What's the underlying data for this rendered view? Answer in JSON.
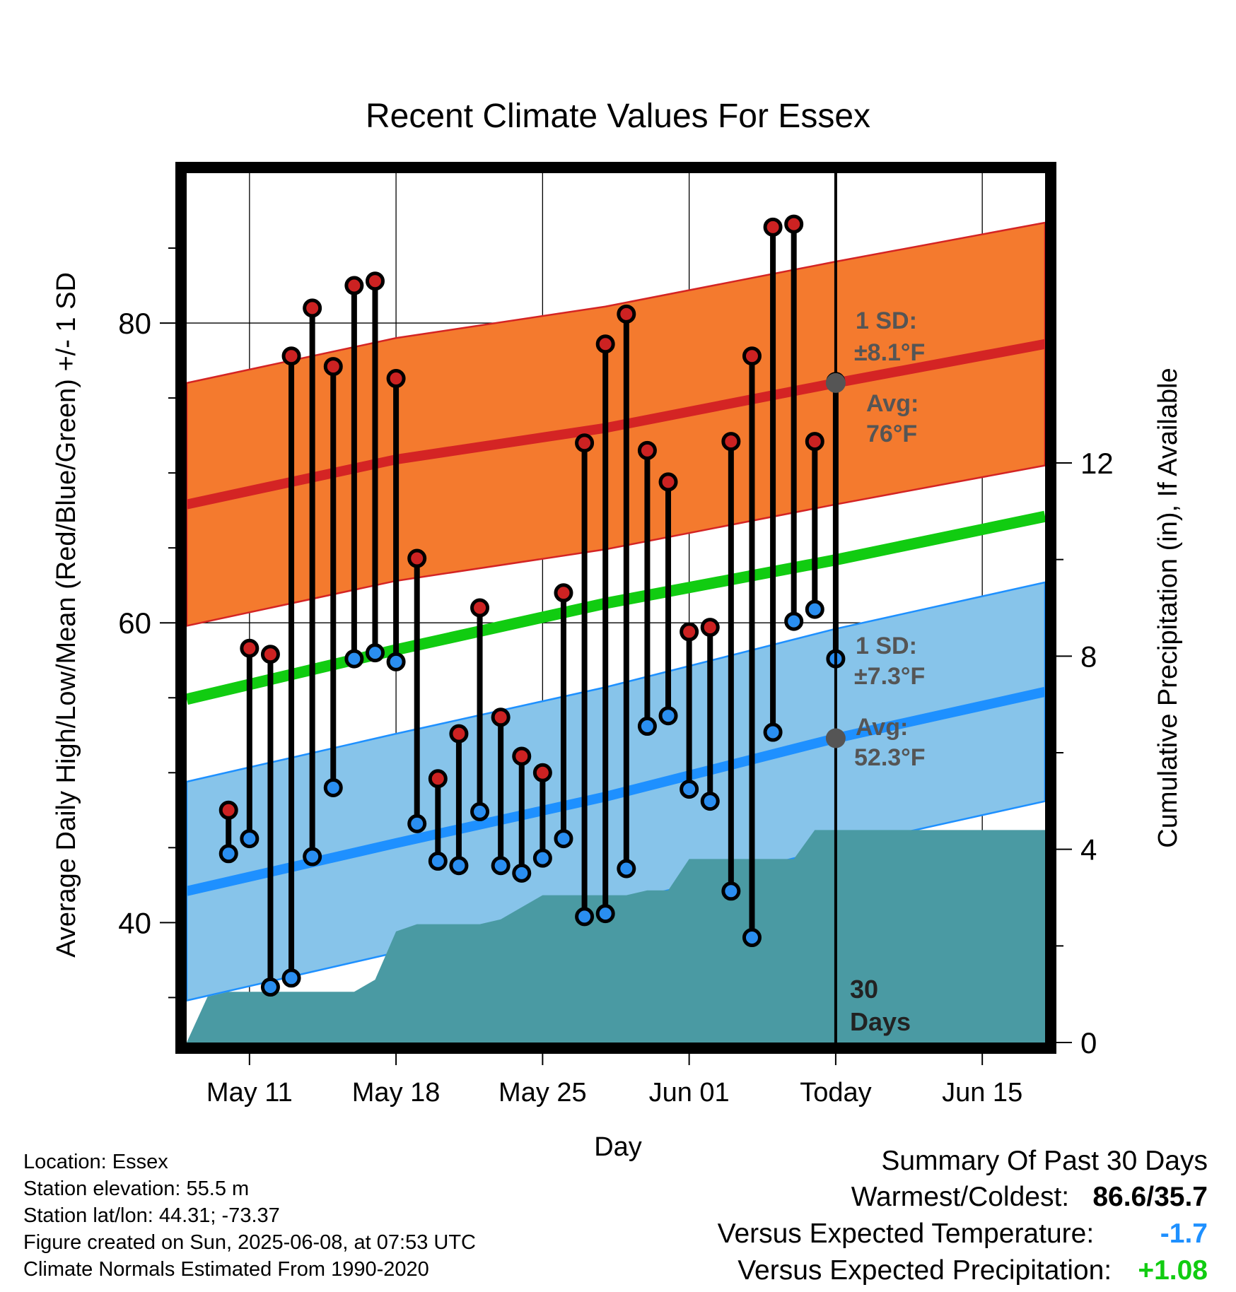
{
  "chart_data": {
    "type": "climate-range",
    "title": "Recent Climate Values For Essex",
    "xlabel": "Day",
    "ylabel_left": "Average Daily High/Low/Mean (Red/Blue/Green) +/- 1 SD",
    "ylabel_right": "Cumulative Precipitation (in), If Available",
    "ylim": [
      32,
      90
    ],
    "yticks_left": [
      40,
      60,
      80
    ],
    "y2lim": [
      0,
      18
    ],
    "yticks_right": [
      0,
      4,
      8,
      12
    ],
    "x_start": "2025-05-08",
    "x_end": "2025-06-18",
    "today": "2025-06-08",
    "xticks": [
      {
        "date": "2025-05-11",
        "label": "May 11"
      },
      {
        "date": "2025-05-18",
        "label": "May 18"
      },
      {
        "date": "2025-05-25",
        "label": "May 25"
      },
      {
        "date": "2025-06-01",
        "label": "Jun 01"
      },
      {
        "date": "2025-06-08",
        "label": "Today"
      },
      {
        "date": "2025-06-15",
        "label": "Jun 15"
      }
    ],
    "observed": [
      {
        "date": "2025-05-10",
        "high": 47.5,
        "low": 44.6
      },
      {
        "date": "2025-05-11",
        "high": 58.3,
        "low": 45.6
      },
      {
        "date": "2025-05-12",
        "high": 57.9,
        "low": 35.7
      },
      {
        "date": "2025-05-13",
        "high": 77.8,
        "low": 36.3
      },
      {
        "date": "2025-05-14",
        "high": 81.0,
        "low": 44.4
      },
      {
        "date": "2025-05-15",
        "high": 77.1,
        "low": 49.0
      },
      {
        "date": "2025-05-16",
        "high": 82.5,
        "low": 57.6
      },
      {
        "date": "2025-05-17",
        "high": 82.8,
        "low": 58.0
      },
      {
        "date": "2025-05-18",
        "high": 76.3,
        "low": 57.4
      },
      {
        "date": "2025-05-19",
        "high": 64.3,
        "low": 46.6
      },
      {
        "date": "2025-05-20",
        "high": 49.6,
        "low": 44.1
      },
      {
        "date": "2025-05-21",
        "high": 52.6,
        "low": 43.8
      },
      {
        "date": "2025-05-22",
        "high": 61.0,
        "low": 47.4
      },
      {
        "date": "2025-05-23",
        "high": 53.7,
        "low": 43.8
      },
      {
        "date": "2025-05-24",
        "high": 51.1,
        "low": 43.3
      },
      {
        "date": "2025-05-25",
        "high": 50.0,
        "low": 44.3
      },
      {
        "date": "2025-05-26",
        "high": 62.0,
        "low": 45.6
      },
      {
        "date": "2025-05-27",
        "high": 72.0,
        "low": 40.4
      },
      {
        "date": "2025-05-28",
        "high": 78.6,
        "low": 40.6
      },
      {
        "date": "2025-05-29",
        "high": 80.6,
        "low": 43.6
      },
      {
        "date": "2025-05-30",
        "high": 71.5,
        "low": 53.1
      },
      {
        "date": "2025-05-31",
        "high": 69.4,
        "low": 53.8
      },
      {
        "date": "2025-06-01",
        "high": 59.4,
        "low": 48.9
      },
      {
        "date": "2025-06-02",
        "high": 59.7,
        "low": 48.1
      },
      {
        "date": "2025-06-03",
        "high": 72.1,
        "low": 42.1
      },
      {
        "date": "2025-06-04",
        "high": 77.8,
        "low": 39.0
      },
      {
        "date": "2025-06-05",
        "high": 86.4,
        "low": 52.7
      },
      {
        "date": "2025-06-06",
        "high": 86.6,
        "low": 60.1
      },
      {
        "date": "2025-06-07",
        "high": 72.1,
        "low": 60.9
      },
      {
        "date": "2025-06-08",
        "high": 76.1,
        "low": 57.6
      }
    ],
    "normal_high": {
      "dates": [
        "2025-05-08",
        "2025-05-18",
        "2025-05-28",
        "2025-06-08",
        "2025-06-18"
      ],
      "avg": [
        67.9,
        70.9,
        73.0,
        76.0,
        78.6
      ],
      "sd": 8.1
    },
    "normal_low": {
      "dates": [
        "2025-05-08",
        "2025-05-18",
        "2025-05-28",
        "2025-06-08",
        "2025-06-18"
      ],
      "avg": [
        42.1,
        45.3,
        48.4,
        52.3,
        55.4
      ],
      "sd": 7.3
    },
    "normal_mean": {
      "dates": [
        "2025-05-08",
        "2025-05-18",
        "2025-05-28",
        "2025-06-08",
        "2025-06-18"
      ],
      "values": [
        54.9,
        58.2,
        61.3,
        64.2,
        67.1
      ]
    },
    "precip_cumulative": {
      "dates": [
        "2025-05-08",
        "2025-05-09",
        "2025-05-10",
        "2025-05-11",
        "2025-05-12",
        "2025-05-13",
        "2025-05-14",
        "2025-05-15",
        "2025-05-16",
        "2025-05-17",
        "2025-05-18",
        "2025-05-19",
        "2025-05-20",
        "2025-05-21",
        "2025-05-22",
        "2025-05-23",
        "2025-05-24",
        "2025-05-25",
        "2025-05-26",
        "2025-05-27",
        "2025-05-28",
        "2025-05-29",
        "2025-05-30",
        "2025-05-31",
        "2025-06-01",
        "2025-06-02",
        "2025-06-03",
        "2025-06-04",
        "2025-06-05",
        "2025-06-06",
        "2025-06-07",
        "2025-06-08",
        "2025-06-18"
      ],
      "values": [
        0.0,
        0.95,
        1.05,
        1.05,
        1.05,
        1.05,
        1.05,
        1.05,
        1.05,
        1.3,
        2.3,
        2.45,
        2.45,
        2.45,
        2.45,
        2.55,
        2.8,
        3.05,
        3.05,
        3.05,
        3.05,
        3.05,
        3.15,
        3.15,
        3.8,
        3.8,
        3.8,
        3.8,
        3.8,
        3.8,
        4.4,
        4.4,
        4.4
      ]
    },
    "annotations": {
      "high_sd_label": "1 SD:",
      "high_sd_value": "±8.1°F",
      "high_avg_label": "Avg:",
      "high_avg_value": "76°F",
      "low_sd_label": "1 SD:",
      "low_sd_value": "±7.3°F",
      "low_avg_label": "Avg:",
      "low_avg_value": "52.3°F",
      "days_label_1": "30",
      "days_label_2": "Days"
    },
    "colors": {
      "high_band": "#f47a2e",
      "high_line": "#d42424",
      "low_band": "#87c4ea",
      "low_line": "#1e90ff",
      "mean_line": "#11cc11",
      "precip": "#4a9aa3",
      "high_dot": "#cc2222",
      "low_dot": "#2a8ef0",
      "avg_dot": "#555555",
      "annotation_text": "#555555"
    }
  },
  "info": {
    "location": "Location: Essex",
    "elevation": "Station elevation: 55.5 m",
    "latlon": "Station lat/lon: 44.31; -73.37",
    "created": "Figure created on Sun, 2025-06-08, at 07:53 UTC",
    "normals": "Climate Normals Estimated From 1990-2020"
  },
  "summary": {
    "title": "Summary Of Past 30 Days",
    "warm_cold_label": "Warmest/Coldest:",
    "warm_cold_value": "86.6/35.7",
    "temp_label": "Versus Expected Temperature:",
    "temp_value": "-1.7",
    "temp_color": "#1e90ff",
    "precip_label": "Versus Expected Precipitation:",
    "precip_value": "+1.08",
    "precip_color": "#11cc11"
  }
}
